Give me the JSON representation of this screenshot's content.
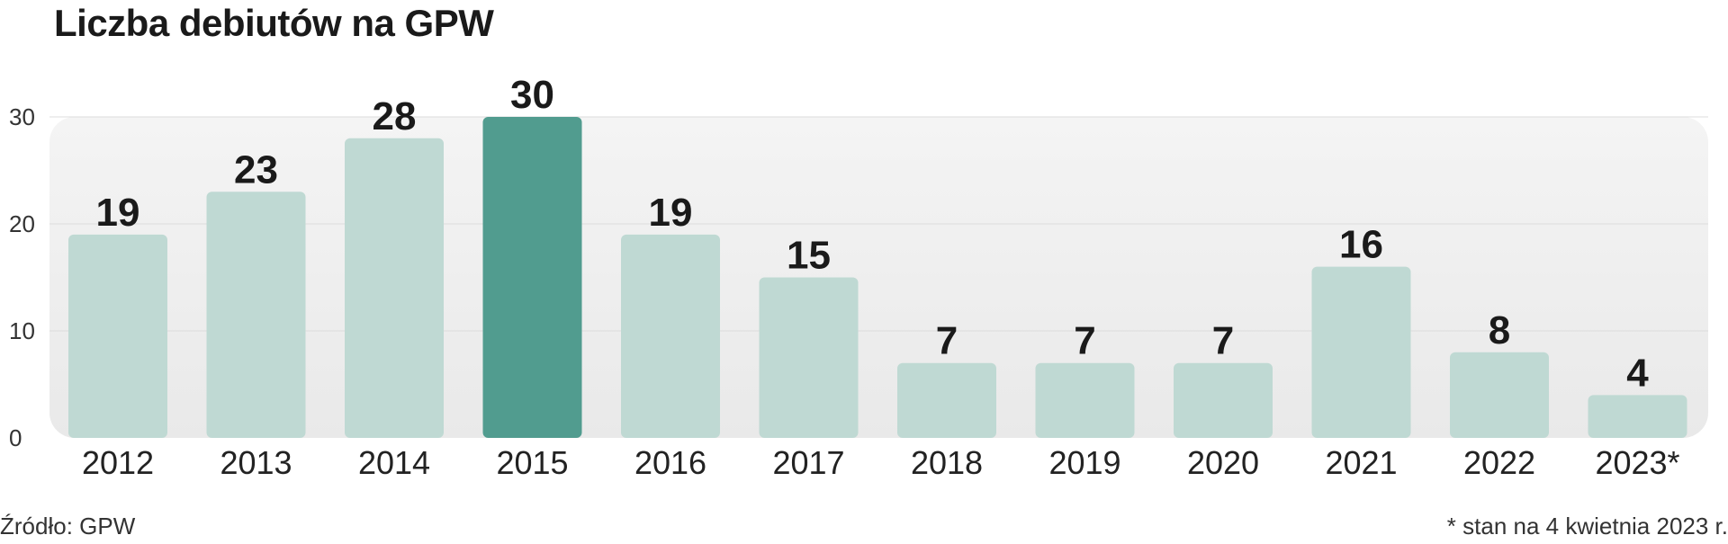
{
  "chart_data": {
    "type": "bar",
    "title": "Liczba debiutów na GPW",
    "categories": [
      "2012",
      "2013",
      "2014",
      "2015",
      "2016",
      "2017",
      "2018",
      "2019",
      "2020",
      "2021",
      "2022",
      "2023*"
    ],
    "values": [
      19,
      23,
      28,
      30,
      19,
      15,
      7,
      7,
      7,
      16,
      8,
      4
    ],
    "data_labels": [
      "19",
      "23",
      "28",
      "30",
      "19",
      "15",
      "7",
      "7",
      "7",
      "16",
      "8",
      "4"
    ],
    "highlight": "2015",
    "yticks": [
      "0",
      "10",
      "20",
      "30"
    ],
    "ylim": [
      0,
      30
    ],
    "grid": true,
    "legend": "none",
    "colors": {
      "bar": "#bfd9d3",
      "highlight": "#519c8f",
      "plot_bg_top": "#f4f4f4",
      "plot_bg_bottom": "#e9e9e9",
      "grid": "#dcdcdc"
    }
  },
  "source": "Źródło: GPW",
  "footnote": "* stan na 4 kwietnia 2023 r."
}
